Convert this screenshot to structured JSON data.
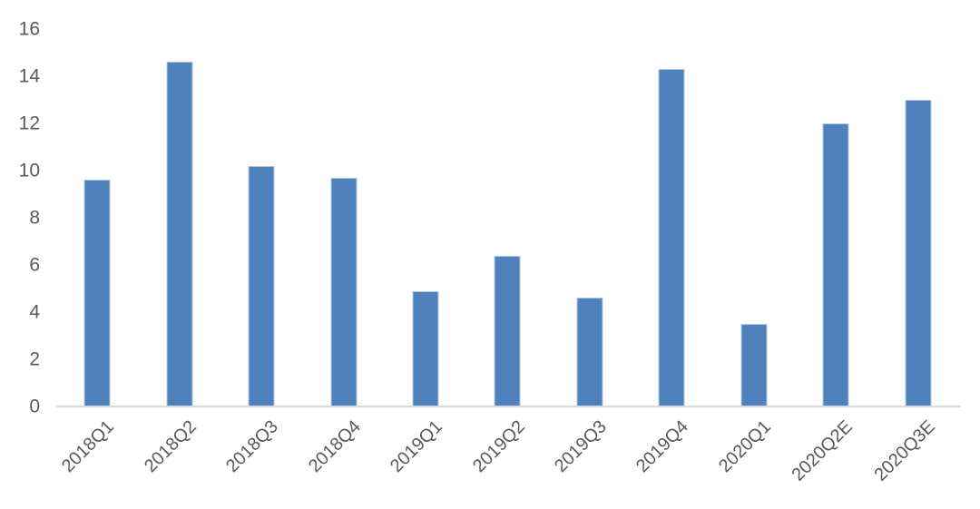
{
  "chart_data": {
    "type": "bar",
    "title": "",
    "xlabel": "",
    "ylabel": "",
    "categories": [
      "2018Q1",
      "2018Q2",
      "2018Q3",
      "2018Q4",
      "2019Q1",
      "2019Q2",
      "2019Q3",
      "2019Q4",
      "2020Q1",
      "2020Q2E",
      "2020Q3E"
    ],
    "values": [
      9.6,
      14.6,
      10.2,
      9.7,
      4.9,
      6.4,
      4.6,
      14.3,
      3.5,
      12,
      13
    ],
    "ylim": [
      0,
      16
    ],
    "y_ticks": [
      0,
      2,
      4,
      6,
      8,
      10,
      12,
      14,
      16
    ],
    "grid": false,
    "legend": "none",
    "colors": {
      "bar_fill": "#4f81bd",
      "bar_border": "#b3c8e4",
      "axis_line": "#d9d9d9",
      "tick_label": "#595959",
      "background": "#ffffff"
    }
  }
}
